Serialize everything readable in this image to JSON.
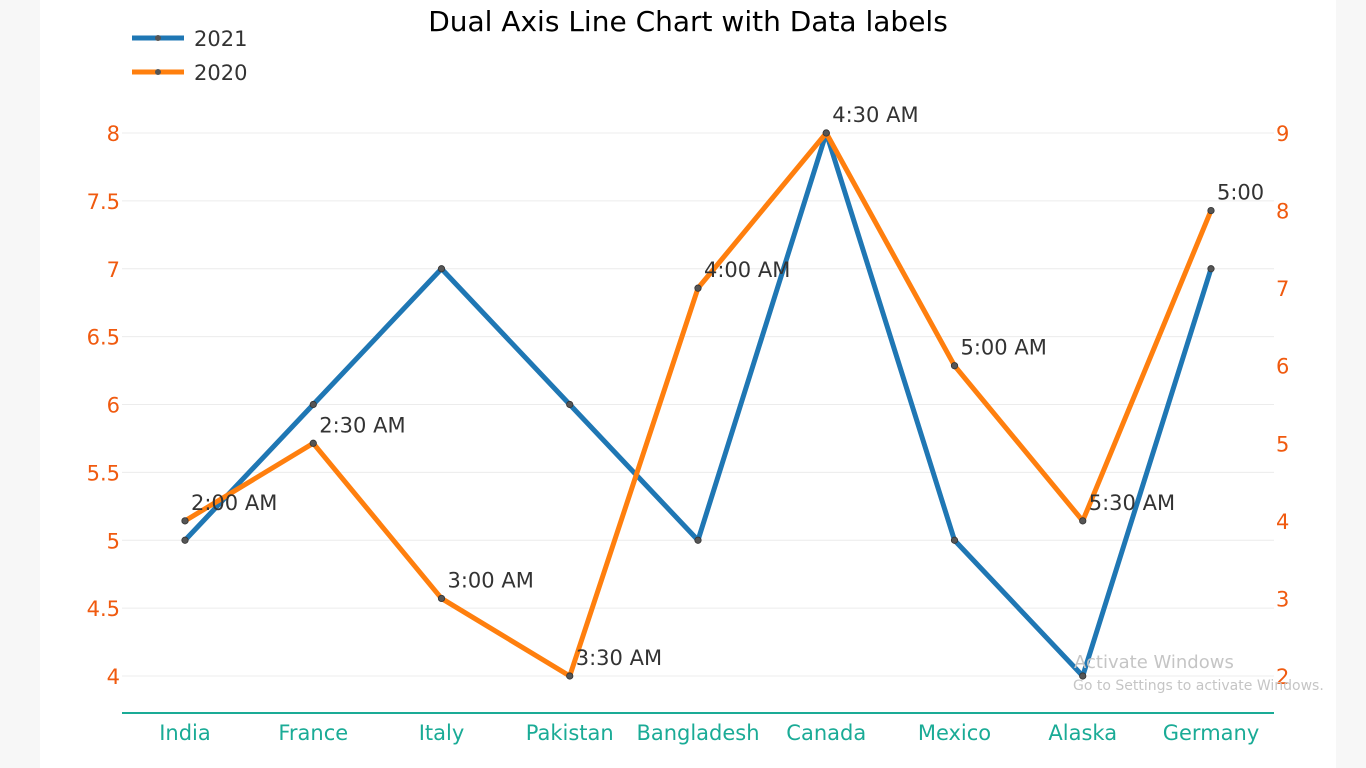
{
  "chart_data": {
    "type": "line",
    "title": "Dual Axis Line Chart with Data labels",
    "categories": [
      "India",
      "France",
      "Italy",
      "Pakistan",
      "Bangladesh",
      "Canada",
      "Mexico",
      "Alaska",
      "Germany"
    ],
    "series": [
      {
        "name": "2021",
        "axis": "left",
        "color": "#1f77b4",
        "values": [
          5,
          6,
          7,
          6,
          5,
          8,
          5,
          4,
          7
        ]
      },
      {
        "name": "2020",
        "axis": "right",
        "color": "#ff7f0e",
        "values": [
          4,
          5,
          3,
          2,
          7,
          9,
          6,
          4,
          8
        ],
        "labels": [
          "2:00 AM",
          "2:30 AM",
          "3:00 AM",
          "3:30 AM",
          "4:00 AM",
          "4:30 AM",
          "5:00 AM",
          "5:30 AM",
          "5:00"
        ]
      }
    ],
    "y_left": {
      "min": 4,
      "max": 8,
      "ticks": [
        "4",
        "4.5",
        "5",
        "5.5",
        "6",
        "6.5",
        "7",
        "7.5",
        "8"
      ]
    },
    "y_right": {
      "min": 2,
      "max": 9,
      "ticks": [
        "2",
        "3",
        "4",
        "5",
        "6",
        "7",
        "8",
        "9"
      ]
    },
    "grid": true,
    "legend_position": "top-left",
    "colors": {
      "left_axis": "#f05a0f",
      "right_axis": "#f05a0f",
      "x_axis": "#1aab96",
      "x_axis_line": "#1aab96"
    }
  },
  "watermark": {
    "title": "Activate Windows",
    "subtitle": "Go to Settings to activate Windows."
  }
}
